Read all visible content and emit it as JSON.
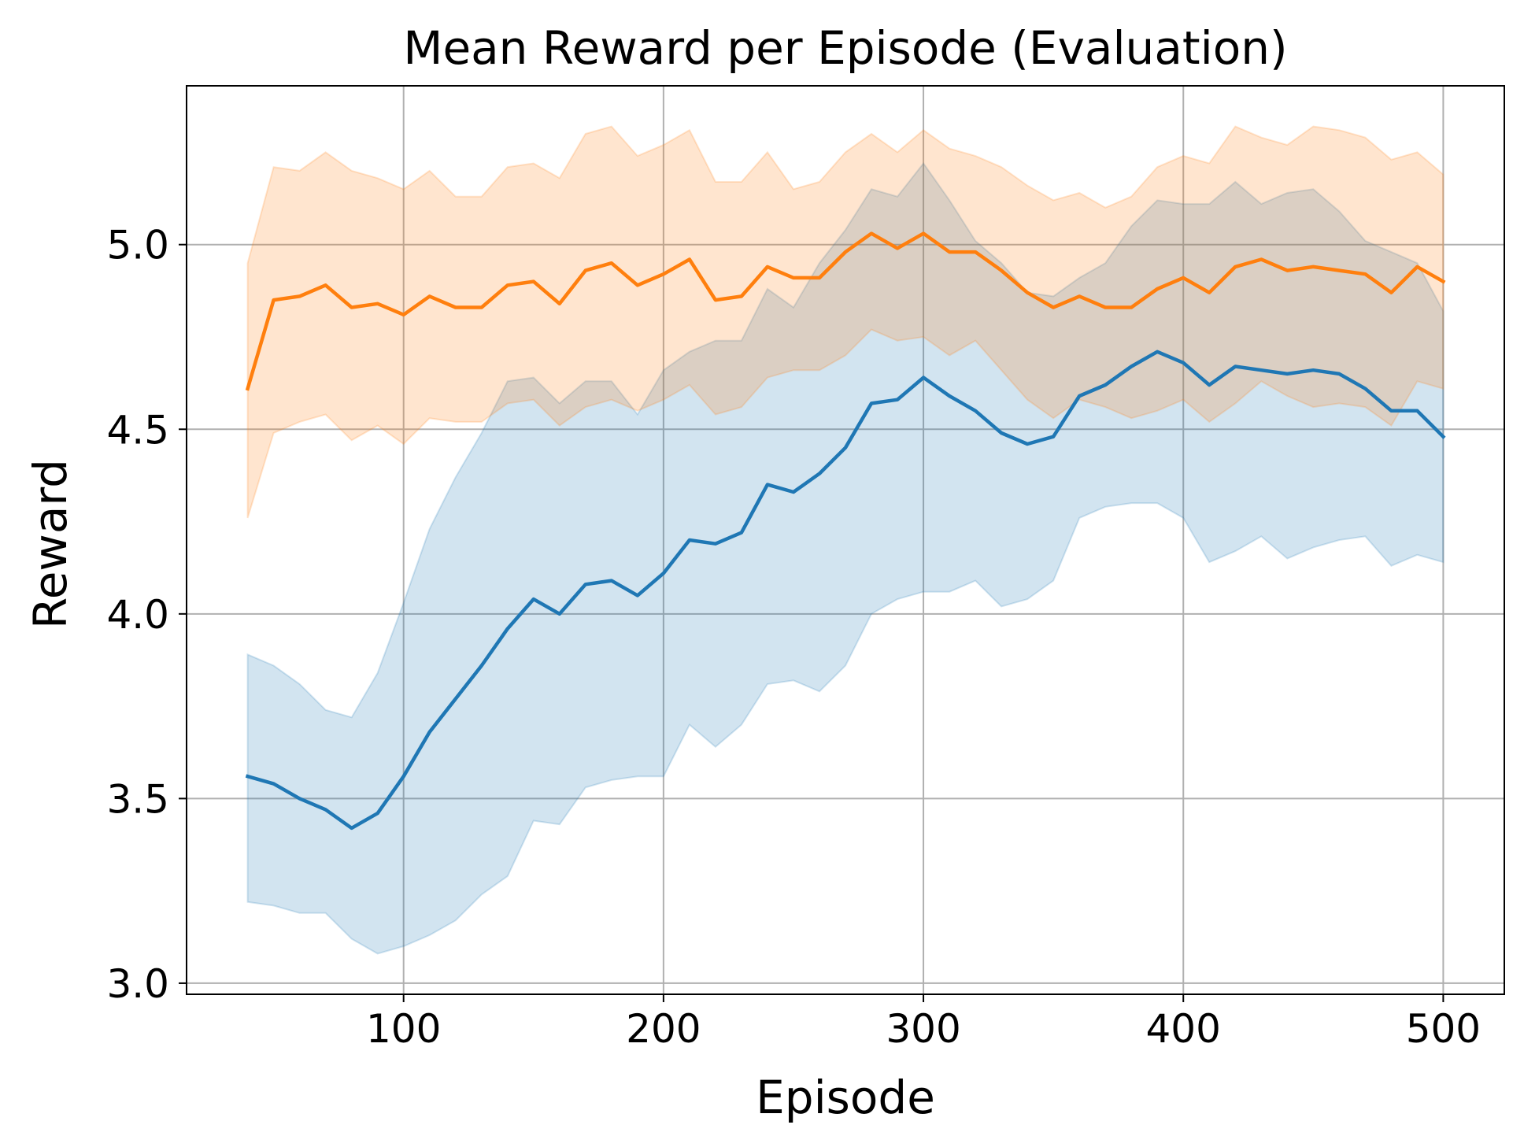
{
  "chart_data": {
    "type": "line",
    "title": "Mean Reward per Episode (Evaluation)",
    "xlabel": "Episode",
    "ylabel": "Reward",
    "xlim": [
      16.5,
      523.5
    ],
    "ylim": [
      2.97,
      5.43
    ],
    "grid": true,
    "xticks": [
      100,
      200,
      300,
      400,
      500
    ],
    "yticks": [
      3.0,
      3.5,
      4.0,
      4.5,
      5.0
    ],
    "xtick_labels": [
      "100",
      "200",
      "300",
      "400",
      "500"
    ],
    "ytick_labels": [
      "3.0",
      "3.5",
      "4.0",
      "4.5",
      "5.0"
    ],
    "x": [
      40,
      50,
      60,
      70,
      80,
      90,
      100,
      110,
      120,
      130,
      140,
      150,
      160,
      170,
      180,
      190,
      200,
      210,
      220,
      230,
      240,
      250,
      260,
      270,
      280,
      290,
      300,
      310,
      320,
      330,
      340,
      350,
      360,
      370,
      380,
      390,
      400,
      410,
      420,
      430,
      440,
      450,
      460,
      470,
      480,
      490,
      500
    ],
    "series": [
      {
        "name": "blue",
        "color": "#1f77b4",
        "band_color": "#1f77b4",
        "values": [
          3.56,
          3.54,
          3.5,
          3.47,
          3.42,
          3.46,
          3.56,
          3.68,
          3.77,
          3.86,
          3.96,
          4.04,
          4.0,
          4.08,
          4.09,
          4.05,
          4.11,
          4.2,
          4.19,
          4.22,
          4.35,
          4.33,
          4.38,
          4.45,
          4.57,
          4.58,
          4.64,
          4.59,
          4.55,
          4.49,
          4.46,
          4.48,
          4.59,
          4.62,
          4.67,
          4.71,
          4.68,
          4.62,
          4.67,
          4.66,
          4.65,
          4.66,
          4.65,
          4.61,
          4.55,
          4.55,
          4.48
        ],
        "lower": [
          3.22,
          3.21,
          3.19,
          3.19,
          3.12,
          3.08,
          3.1,
          3.13,
          3.17,
          3.24,
          3.29,
          3.44,
          3.43,
          3.53,
          3.55,
          3.56,
          3.56,
          3.7,
          3.64,
          3.7,
          3.81,
          3.82,
          3.79,
          3.86,
          4.0,
          4.04,
          4.06,
          4.06,
          4.09,
          4.02,
          4.04,
          4.09,
          4.26,
          4.29,
          4.3,
          4.3,
          4.26,
          4.14,
          4.17,
          4.21,
          4.15,
          4.18,
          4.2,
          4.21,
          4.13,
          4.16,
          4.14
        ],
        "upper": [
          3.89,
          3.86,
          3.81,
          3.74,
          3.72,
          3.84,
          4.03,
          4.23,
          4.37,
          4.49,
          4.63,
          4.64,
          4.57,
          4.63,
          4.63,
          4.54,
          4.66,
          4.71,
          4.74,
          4.74,
          4.88,
          4.83,
          4.95,
          5.04,
          5.15,
          5.13,
          5.22,
          5.12,
          5.01,
          4.95,
          4.87,
          4.86,
          4.91,
          4.95,
          5.05,
          5.12,
          5.11,
          5.11,
          5.17,
          5.11,
          5.14,
          5.15,
          5.09,
          5.01,
          4.98,
          4.95,
          4.82
        ]
      },
      {
        "name": "orange",
        "color": "#ff7f0e",
        "band_color": "#ff7f0e",
        "values": [
          4.61,
          4.85,
          4.86,
          4.89,
          4.83,
          4.84,
          4.81,
          4.86,
          4.83,
          4.83,
          4.89,
          4.9,
          4.84,
          4.93,
          4.95,
          4.89,
          4.92,
          4.96,
          4.85,
          4.86,
          4.94,
          4.91,
          4.91,
          4.98,
          5.03,
          4.99,
          5.03,
          4.98,
          4.98,
          4.93,
          4.87,
          4.83,
          4.86,
          4.83,
          4.83,
          4.88,
          4.91,
          4.87,
          4.94,
          4.96,
          4.93,
          4.94,
          4.93,
          4.92,
          4.87,
          4.94,
          4.9
        ],
        "lower": [
          4.26,
          4.49,
          4.52,
          4.54,
          4.47,
          4.51,
          4.46,
          4.53,
          4.52,
          4.52,
          4.57,
          4.58,
          4.51,
          4.56,
          4.58,
          4.55,
          4.58,
          4.62,
          4.54,
          4.56,
          4.64,
          4.66,
          4.66,
          4.7,
          4.77,
          4.74,
          4.75,
          4.7,
          4.74,
          4.66,
          4.58,
          4.53,
          4.58,
          4.56,
          4.53,
          4.55,
          4.58,
          4.52,
          4.57,
          4.63,
          4.59,
          4.56,
          4.57,
          4.56,
          4.51,
          4.63,
          4.61
        ],
        "upper": [
          4.95,
          5.21,
          5.2,
          5.25,
          5.2,
          5.18,
          5.15,
          5.2,
          5.13,
          5.13,
          5.21,
          5.22,
          5.18,
          5.3,
          5.32,
          5.24,
          5.27,
          5.31,
          5.17,
          5.17,
          5.25,
          5.15,
          5.17,
          5.25,
          5.3,
          5.25,
          5.31,
          5.26,
          5.24,
          5.21,
          5.16,
          5.12,
          5.14,
          5.1,
          5.13,
          5.21,
          5.24,
          5.22,
          5.32,
          5.29,
          5.27,
          5.32,
          5.31,
          5.29,
          5.23,
          5.25,
          5.19
        ]
      }
    ]
  }
}
